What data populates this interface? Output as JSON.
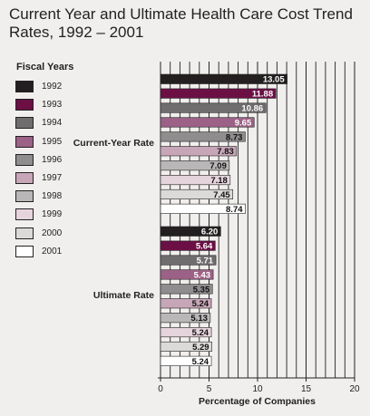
{
  "title": "Current Year and Ultimate Health Care Cost Trend Rates, 1992 – 2001",
  "legend_title": "Fiscal Years",
  "chart_data": {
    "type": "bar",
    "orientation": "horizontal",
    "xlabel": "Percentage of Companies",
    "xlim": [
      0,
      20
    ],
    "xticks": [
      "0",
      "5",
      "10",
      "15",
      "20"
    ],
    "grid": true,
    "legend_position": "left",
    "groups": [
      {
        "label": "Current-Year Rate",
        "values": [
          "13.05",
          "11.88",
          "10.86",
          "9.65",
          "8.73",
          "7.83",
          "7.09",
          "7.18",
          "7.45",
          "8.74"
        ]
      },
      {
        "label": "Ultimate Rate",
        "values": [
          "6.20",
          "5.64",
          "5.71",
          "5.43",
          "5.35",
          "5.24",
          "5.13",
          "5.24",
          "5.29",
          "5.24"
        ]
      }
    ],
    "series": [
      {
        "name": "1992",
        "color": "#231f20"
      },
      {
        "name": "1993",
        "color": "#6b0f45"
      },
      {
        "name": "1994",
        "color": "#6f6d6d"
      },
      {
        "name": "1995",
        "color": "#9c6186"
      },
      {
        "name": "1996",
        "color": "#8f8d8d"
      },
      {
        "name": "1997",
        "color": "#c7a6b8"
      },
      {
        "name": "1998",
        "color": "#b9b7b7"
      },
      {
        "name": "1999",
        "color": "#e6d4dd"
      },
      {
        "name": "2000",
        "color": "#dcdad9"
      },
      {
        "name": "2001",
        "color": "#ffffff"
      }
    ]
  }
}
